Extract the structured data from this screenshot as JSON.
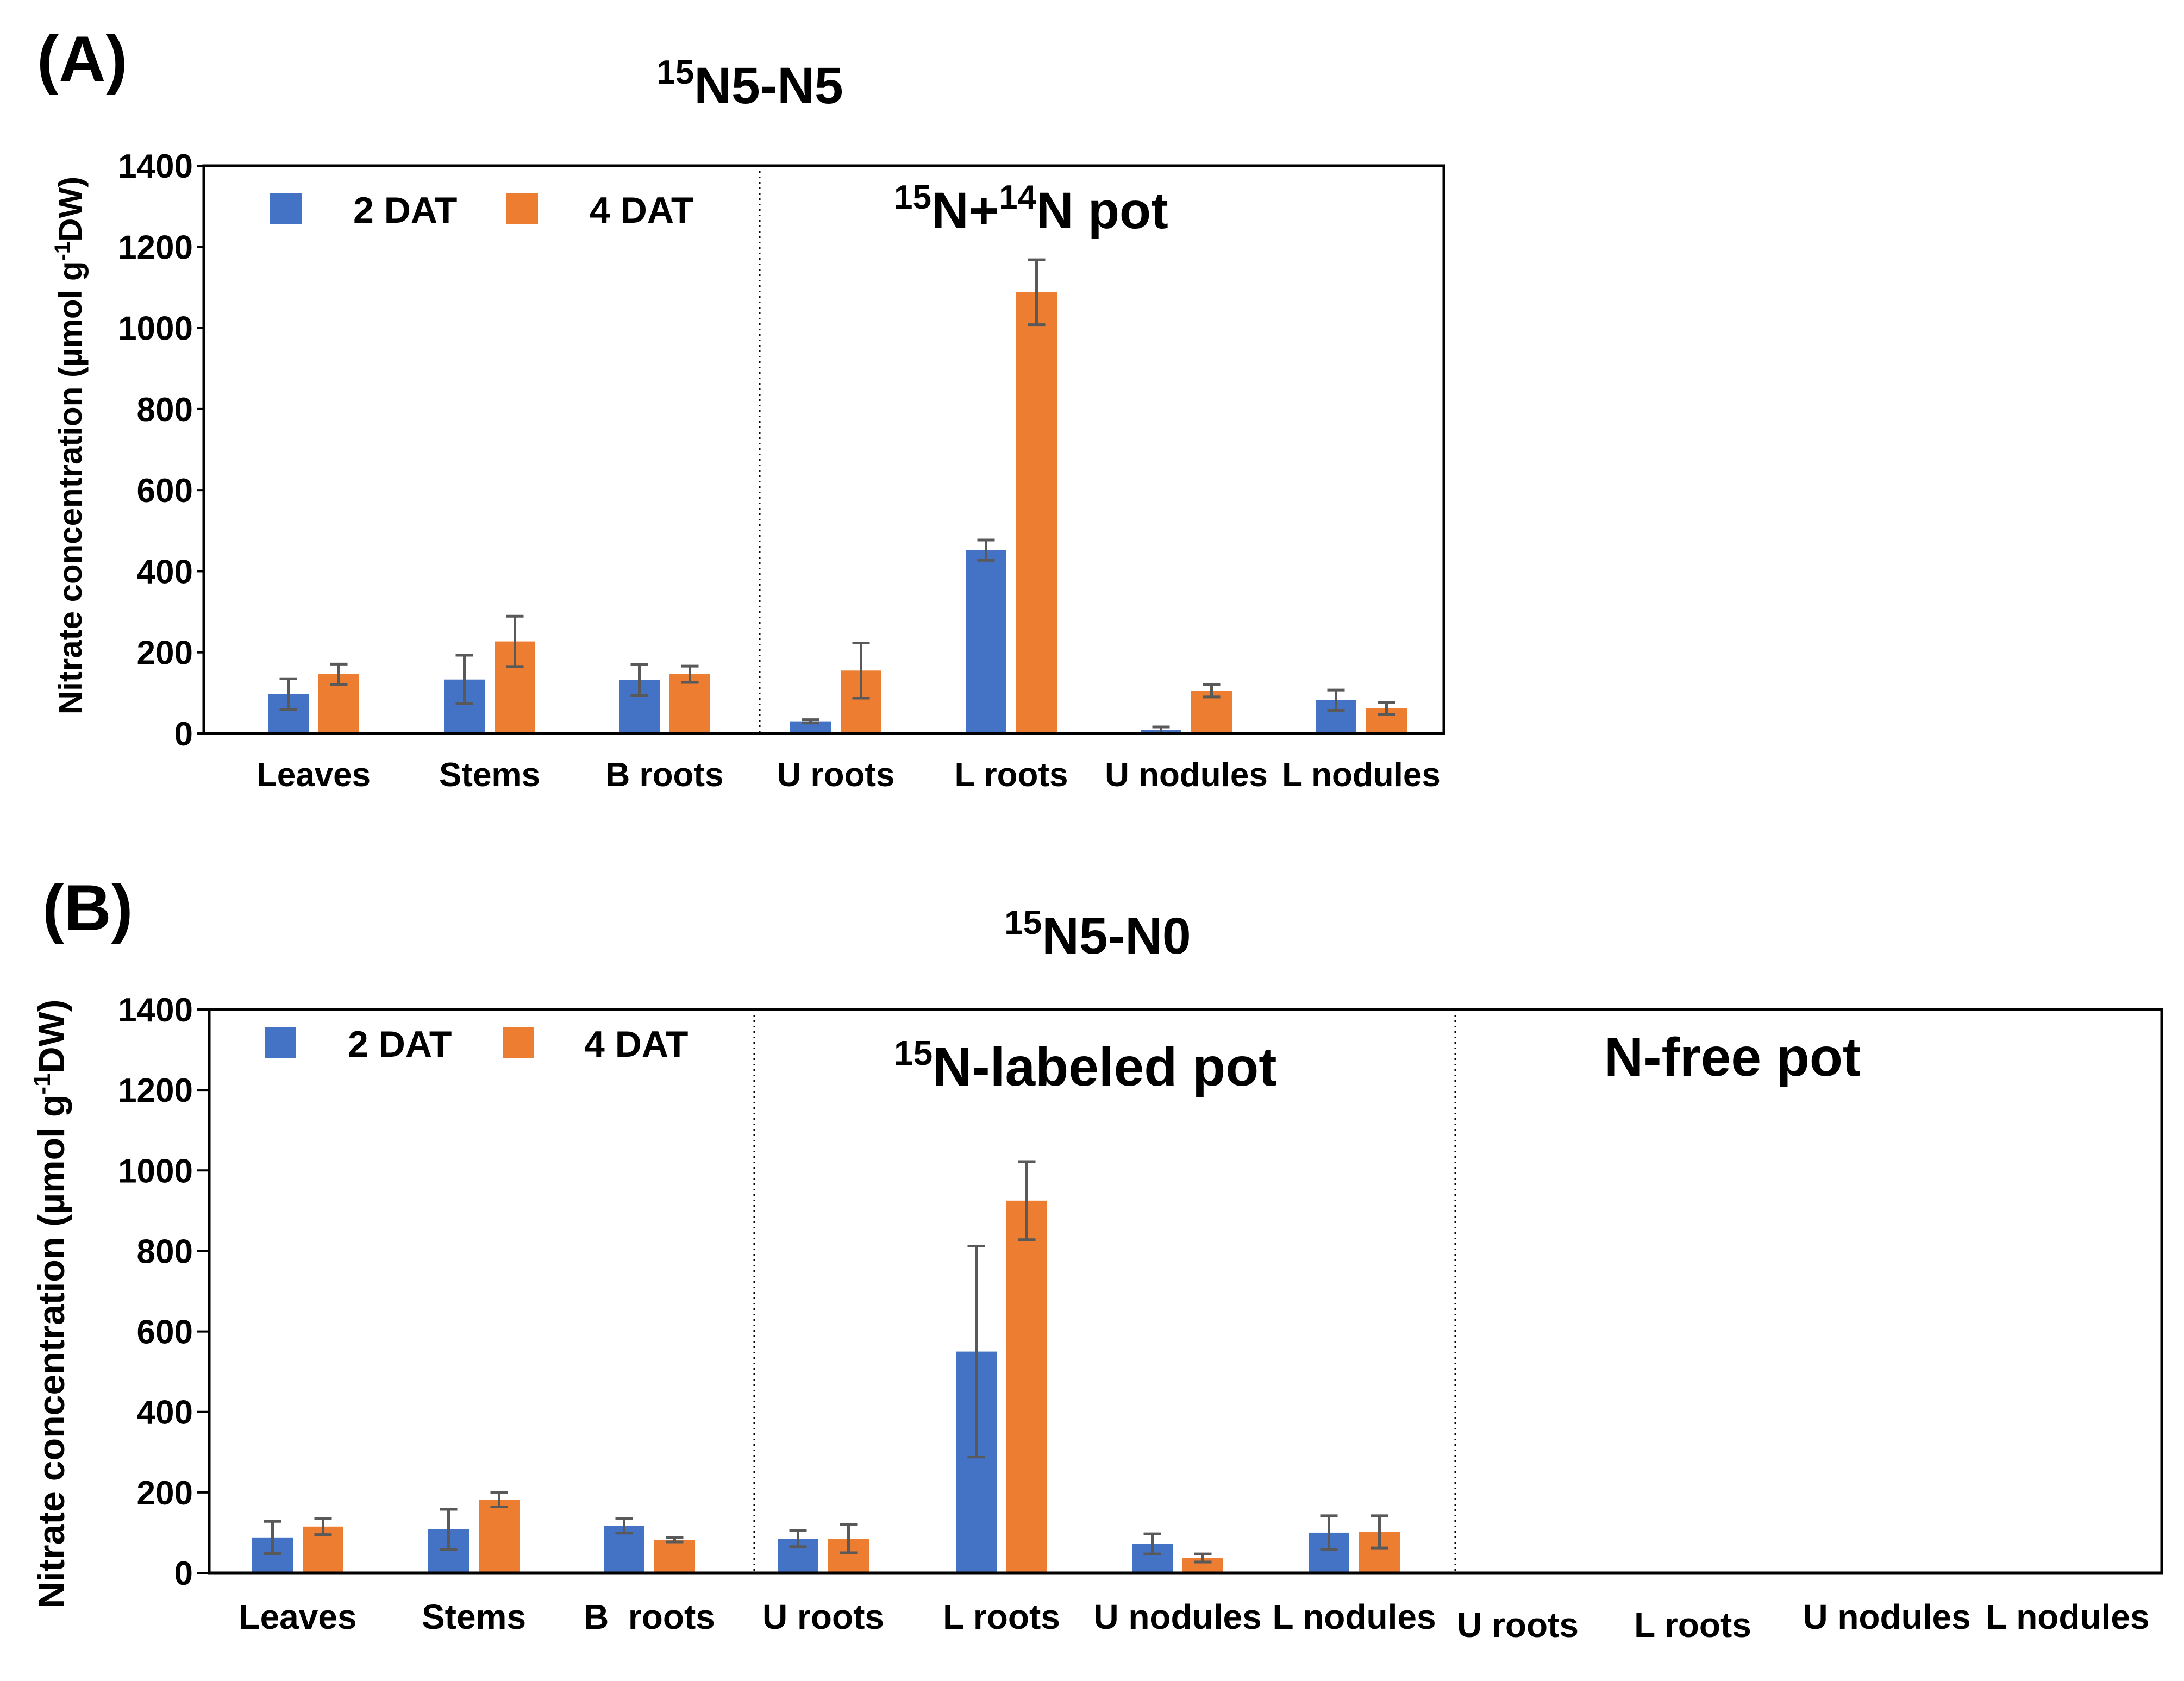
{
  "colors": {
    "series_2dat": "#4472C4",
    "series_4dat": "#ED7D31",
    "axis": "#000000",
    "error_bar": "#595959"
  },
  "chart_data": [
    {
      "type": "bar",
      "panel_label": "(A)",
      "title_sup": "15",
      "title_main": "N5-N5",
      "ylabel": "Nitrate concentration (µmol g⁻¹DW)",
      "ylabel_pre": "Nitrate concentration (µmol g",
      "ylabel_sup": "-1",
      "ylabel_post": "DW)",
      "ylim": [
        0,
        1400
      ],
      "yticks": [
        0,
        200,
        400,
        600,
        800,
        1000,
        1200,
        1400
      ],
      "legend": [
        "2 DAT",
        "4 DAT"
      ],
      "legend_position": "top-left",
      "categories": [
        "Leaves",
        "Stems",
        "B roots",
        "U roots",
        "L roots",
        "U nodules",
        "L nodules"
      ],
      "series": [
        {
          "name": "2 DAT",
          "values": [
            97,
            133,
            132,
            30,
            452,
            8,
            82
          ],
          "errors": [
            38,
            60,
            38,
            4,
            25,
            8,
            25
          ]
        },
        {
          "name": "4 DAT",
          "values": [
            146,
            227,
            146,
            155,
            1088,
            105,
            62
          ],
          "errors": [
            25,
            62,
            20,
            68,
            80,
            15,
            15
          ]
        }
      ],
      "sections": [
        {
          "label_sup_1": "15",
          "label_mid": "N+",
          "label_sup_2": "14",
          "label_end": "N pot",
          "label": "15N+14N pot"
        }
      ]
    },
    {
      "type": "bar",
      "panel_label": "(B)",
      "title_sup": "15",
      "title_main": "N5-N0",
      "ylabel": "Nitrate concentration (µmol g⁻¹DW)",
      "ylabel_pre": "Nitrate concentration (µmol g",
      "ylabel_sup": "-1",
      "ylabel_post": "DW)",
      "ylim": [
        0,
        1400
      ],
      "yticks": [
        0,
        200,
        400,
        600,
        800,
        1000,
        1200,
        1400
      ],
      "legend": [
        "2 DAT",
        "4 DAT"
      ],
      "legend_position": "top-left",
      "categories": [
        "Leaves",
        "Stems",
        "B  roots",
        "U roots",
        "L roots",
        "U nodules",
        "L nodules",
        "U roots",
        "L roots",
        "U nodules",
        "L nodules"
      ],
      "series": [
        {
          "name": "2 DAT",
          "values": [
            88,
            108,
            117,
            85,
            550,
            72,
            100,
            0,
            3,
            0,
            0
          ],
          "errors": [
            40,
            50,
            18,
            20,
            262,
            25,
            42,
            0,
            0,
            0,
            0
          ]
        },
        {
          "name": "4 DAT",
          "values": [
            115,
            182,
            82,
            85,
            925,
            37,
            102,
            0,
            0,
            0,
            0
          ],
          "errors": [
            20,
            18,
            5,
            35,
            97,
            10,
            40,
            0,
            0,
            0,
            0
          ]
        }
      ],
      "sections": [
        {
          "label_sup_1": "15",
          "label_mid": "N-labeled pot",
          "label": "15N-labeled pot"
        },
        {
          "label_mid": "N-free pot",
          "label": "N-free pot"
        }
      ]
    }
  ]
}
